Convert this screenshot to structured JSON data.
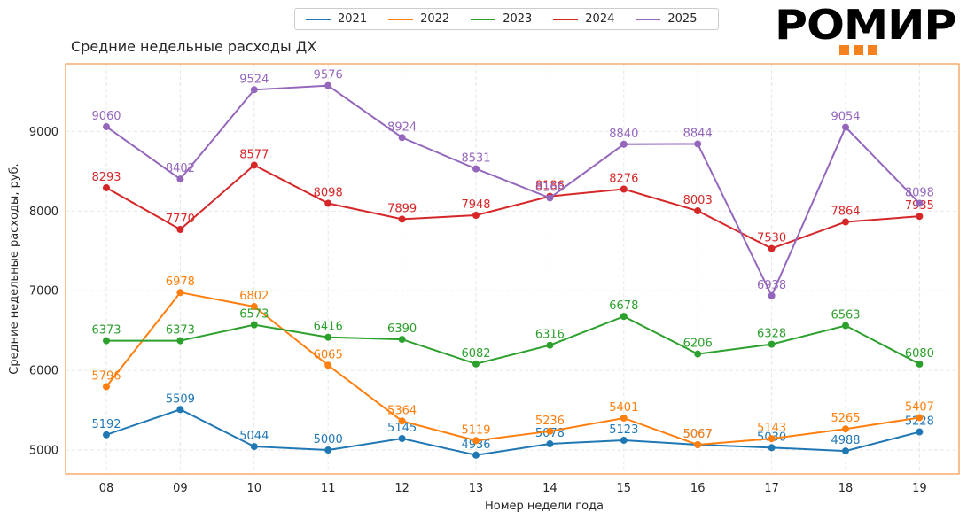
{
  "logo": {
    "text": "РОМИР"
  },
  "chart_data": {
    "type": "line",
    "title": "Средние недельные расходы ДХ",
    "xlabel": "Номер недели года",
    "ylabel": "Средние недельные расходы, руб.",
    "categories": [
      "08",
      "09",
      "10",
      "11",
      "12",
      "13",
      "14",
      "15",
      "16",
      "17",
      "18",
      "19"
    ],
    "ylim": [
      4700,
      9850
    ],
    "yticks": [
      5000,
      6000,
      7000,
      8000,
      9000
    ],
    "grid": true,
    "legend_position": "top-center",
    "series": [
      {
        "name": "2021",
        "color": "#1f77b4",
        "values": [
          5192,
          5509,
          5044,
          5000,
          5145,
          4936,
          5078,
          5123,
          5067,
          5030,
          4988,
          5228
        ]
      },
      {
        "name": "2022",
        "color": "#ff7f0e",
        "values": [
          5796,
          6978,
          6802,
          6065,
          5364,
          5119,
          5236,
          5401,
          5067,
          5143,
          5265,
          5407
        ]
      },
      {
        "name": "2023",
        "color": "#2ca02c",
        "values": [
          6373,
          6373,
          6573,
          6416,
          6390,
          6082,
          6316,
          6678,
          6206,
          6328,
          6563,
          6080
        ]
      },
      {
        "name": "2024",
        "color": "#d62728",
        "values": [
          8293,
          7770,
          8577,
          8098,
          7899,
          7948,
          8186,
          8276,
          8003,
          7530,
          7864,
          7935
        ]
      },
      {
        "name": "2025",
        "color": "#9467bd",
        "values": [
          9060,
          8402,
          9524,
          9576,
          8924,
          8531,
          8166,
          8840,
          8844,
          6938,
          9054,
          8098
        ]
      }
    ]
  }
}
